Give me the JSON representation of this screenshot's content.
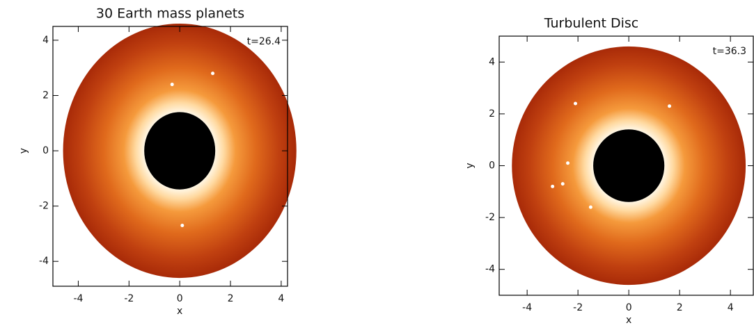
{
  "chart_data": [
    {
      "type": "scatter",
      "title": "30 Earth mass planets",
      "annotation": "t=26.4",
      "x_label": "x",
      "y_label": "y",
      "xlim": [
        -5,
        4.25
      ],
      "ylim": [
        -4.9,
        4.5
      ],
      "xticks": [
        -4,
        -2,
        0,
        2,
        4
      ],
      "yticks": [
        -4,
        -2,
        0,
        2,
        4
      ],
      "disc": {
        "inner_radius": 1.4,
        "outer_radius": 4.6
      },
      "x": [
        -0.3,
        1.3,
        0.1
      ],
      "values": [
        2.4,
        2.8,
        -2.7
      ],
      "color": "#ffffff"
    },
    {
      "type": "scatter",
      "title": "Turbulent Disc",
      "annotation": "t=36.3",
      "x_label": "x",
      "y_label": "y",
      "xlim": [
        -5.1,
        4.9
      ],
      "ylim": [
        -5,
        5
      ],
      "xticks": [
        -4,
        -2,
        0,
        2,
        4
      ],
      "yticks": [
        -4,
        -2,
        0,
        2,
        4
      ],
      "disc": {
        "inner_radius": 1.4,
        "outer_radius": 4.6
      },
      "x": [
        -2.1,
        1.6,
        -2.4,
        -2.6,
        -3.0,
        -1.5
      ],
      "values": [
        2.4,
        2.3,
        0.1,
        -0.7,
        -0.8,
        -1.6
      ],
      "color": "#ffffff"
    }
  ]
}
